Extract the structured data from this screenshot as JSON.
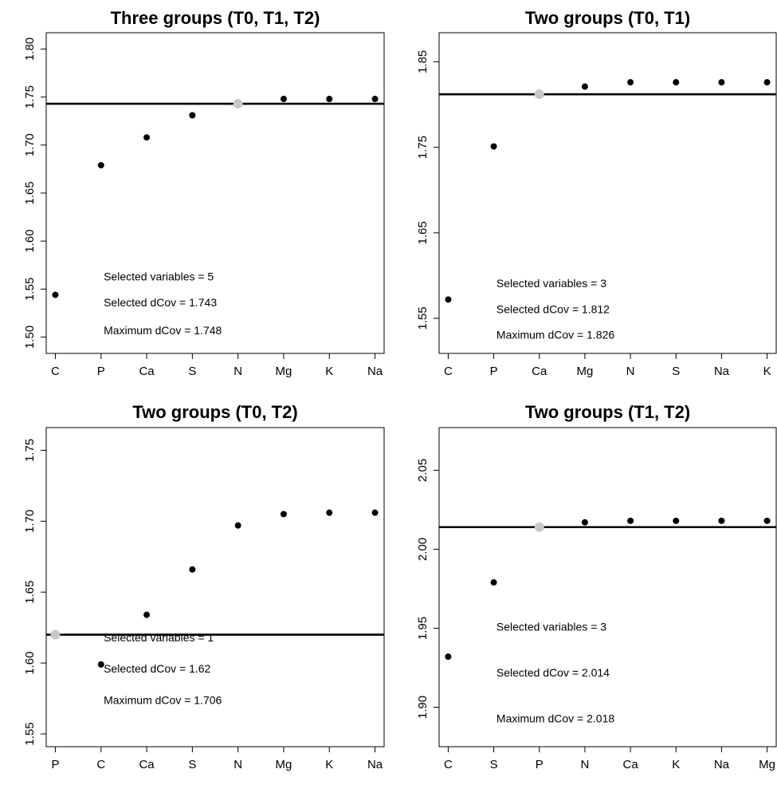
{
  "chart_data": [
    {
      "type": "scatter",
      "title": "Three groups (T0, T1, T2)",
      "categories": [
        "C",
        "P",
        "Ca",
        "S",
        "N",
        "Mg",
        "K",
        "Na"
      ],
      "values": [
        1.544,
        1.679,
        1.708,
        1.731,
        1.743,
        1.748,
        1.748,
        1.748
      ],
      "yticks": [
        "1.50",
        "1.55",
        "1.60",
        "1.65",
        "1.70",
        "1.75",
        "1.80"
      ],
      "ylim": [
        1.483,
        1.817
      ],
      "hline": 1.743,
      "selected_index": 4,
      "annotations": [
        "Selected variables =  5",
        "Selected dCov =  1.743",
        "Maximum dCov =  1.748"
      ],
      "annotation_y": [
        1.563,
        1.536,
        1.507
      ]
    },
    {
      "type": "scatter",
      "title": "Two groups (T0, T1)",
      "categories": [
        "C",
        "P",
        "Ca",
        "Mg",
        "N",
        "S",
        "Na",
        "K"
      ],
      "values": [
        1.572,
        1.751,
        1.812,
        1.821,
        1.826,
        1.826,
        1.826,
        1.826
      ],
      "yticks": [
        "1.55",
        "1.65",
        "1.75",
        "1.85"
      ],
      "ylim": [
        1.509,
        1.884
      ],
      "hline": 1.812,
      "selected_index": 2,
      "annotations": [
        "Selected variables =  3",
        "Selected dCov =  1.812",
        "Maximum dCov =  1.826"
      ],
      "annotation_y": [
        1.591,
        1.561,
        1.531
      ]
    },
    {
      "type": "scatter",
      "title": "Two groups (T0, T2)",
      "categories": [
        "P",
        "C",
        "Ca",
        "S",
        "N",
        "Mg",
        "K",
        "Na"
      ],
      "values": [
        1.62,
        1.599,
        1.634,
        1.666,
        1.697,
        1.705,
        1.706,
        1.706
      ],
      "yticks": [
        "1.55",
        "1.60",
        "1.65",
        "1.70",
        "1.75"
      ],
      "ylim": [
        1.541,
        1.766
      ],
      "hline": 1.62,
      "selected_index": 0,
      "annotations": [
        "Selected variables =  1",
        "Selected dCov =  1.62",
        "Maximum dCov =  1.706"
      ],
      "annotation_y": [
        1.618,
        1.596,
        1.574
      ]
    },
    {
      "type": "scatter",
      "title": "Two groups (T1, T2)",
      "categories": [
        "C",
        "S",
        "P",
        "N",
        "Ca",
        "K",
        "Na",
        "Mg"
      ],
      "values": [
        1.932,
        1.979,
        2.014,
        2.017,
        2.018,
        2.018,
        2.018,
        2.018
      ],
      "yticks": [
        "1.90",
        "1.95",
        "2.00",
        "2.05"
      ],
      "ylim": [
        1.875,
        2.077
      ],
      "hline": 2.014,
      "selected_index": 2,
      "annotations": [
        "Selected variables =  3",
        "Selected dCov =  2.014",
        "Maximum dCov =  2.018"
      ],
      "annotation_y": [
        1.951,
        1.922,
        1.893
      ]
    }
  ],
  "colors": {
    "point": "#000000",
    "selected_point": "#c8c8c8",
    "line": "#000000"
  }
}
